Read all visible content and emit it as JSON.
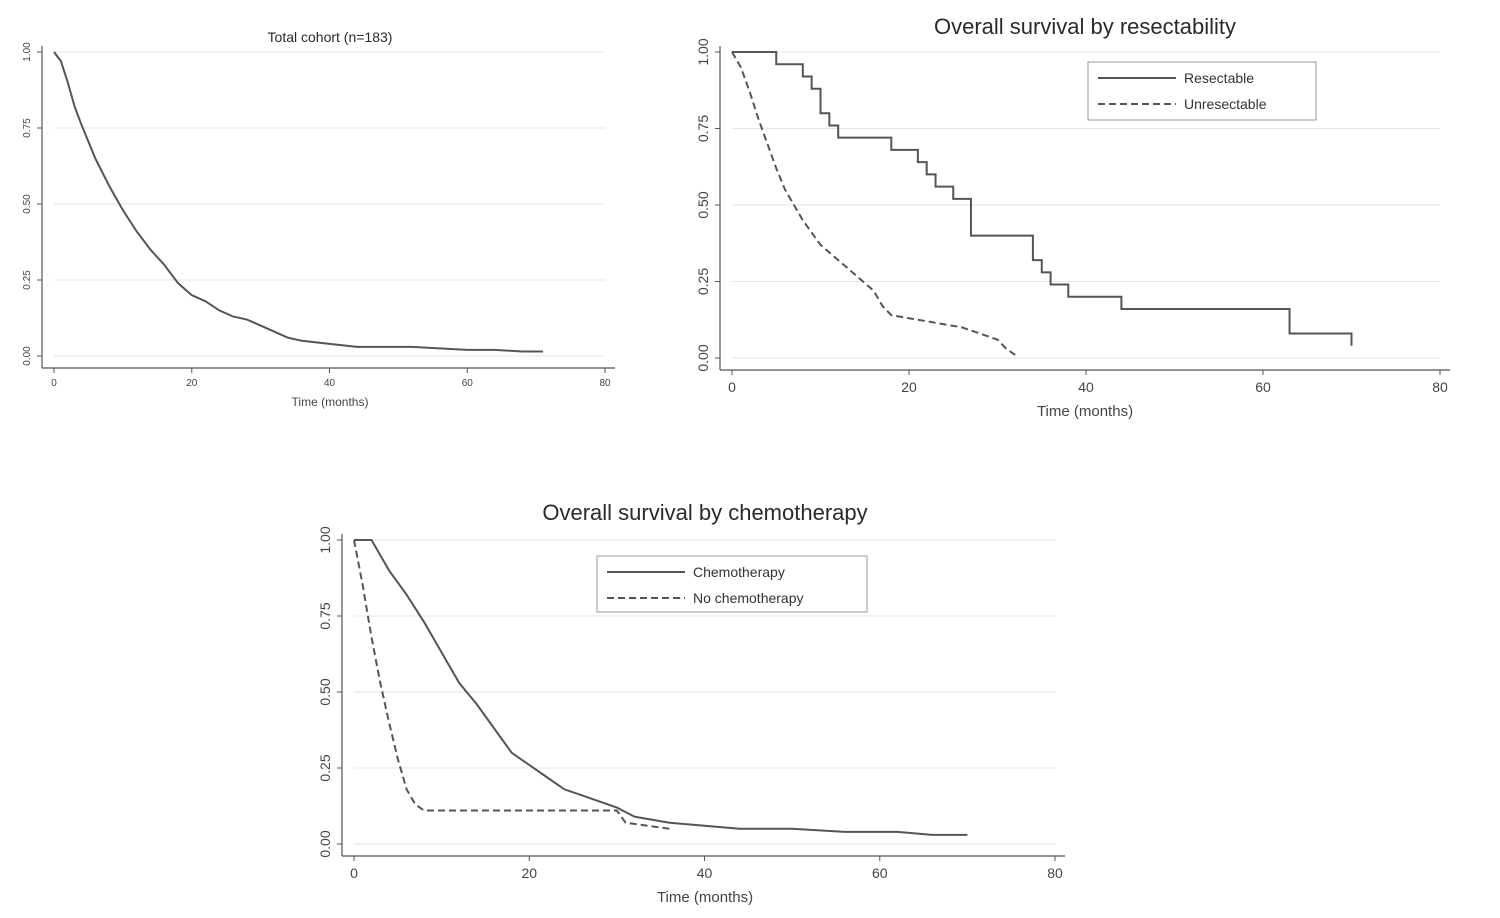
{
  "chart_data": [
    {
      "type": "line",
      "title": "Total cohort (n=183)",
      "xlabel": "Time (months)",
      "ylabel": "",
      "xlim": [
        0,
        80
      ],
      "ylim": [
        0,
        1
      ],
      "xticks": [
        "0",
        "20",
        "40",
        "60",
        "80"
      ],
      "yticks": [
        "0.00",
        "0.25",
        "0.50",
        "0.75",
        "1.00"
      ],
      "grid": true,
      "legend": "none",
      "series": [
        {
          "style": "solid",
          "x": [
            0,
            1,
            2,
            3,
            4,
            6,
            8,
            10,
            12,
            14,
            16,
            18,
            20,
            22,
            24,
            26,
            28,
            30,
            32,
            34,
            36,
            40,
            44,
            48,
            52,
            56,
            60,
            64,
            68,
            71
          ],
          "y": [
            1.0,
            0.97,
            0.9,
            0.82,
            0.76,
            0.65,
            0.56,
            0.48,
            0.41,
            0.35,
            0.3,
            0.24,
            0.2,
            0.18,
            0.15,
            0.13,
            0.12,
            0.1,
            0.08,
            0.06,
            0.05,
            0.04,
            0.03,
            0.03,
            0.03,
            0.025,
            0.02,
            0.02,
            0.015,
            0.015
          ]
        }
      ]
    },
    {
      "type": "line",
      "title": "Overall survival by resectability",
      "xlabel": "Time (months)",
      "ylabel": "",
      "xlim": [
        0,
        80
      ],
      "ylim": [
        0,
        1
      ],
      "xticks": [
        "0",
        "20",
        "40",
        "60",
        "80"
      ],
      "yticks": [
        "0.00",
        "0.25",
        "0.50",
        "0.75",
        "1.00"
      ],
      "grid": true,
      "legend": "top-right",
      "series": [
        {
          "name": "Resectable",
          "style": "solid",
          "step": true,
          "x": [
            0,
            5,
            8,
            9,
            10,
            11,
            12,
            18,
            21,
            22,
            23,
            25,
            27,
            34,
            35,
            36,
            38,
            44,
            62,
            63,
            70,
            70
          ],
          "y": [
            1.0,
            0.96,
            0.92,
            0.88,
            0.8,
            0.76,
            0.72,
            0.68,
            0.64,
            0.6,
            0.56,
            0.52,
            0.4,
            0.32,
            0.28,
            0.24,
            0.2,
            0.16,
            0.16,
            0.08,
            0.08,
            0.04
          ]
        },
        {
          "name": "Unresectable",
          "style": "dashed",
          "x": [
            0,
            1,
            2,
            3,
            4,
            5,
            6,
            8,
            10,
            12,
            14,
            16,
            17,
            18,
            20,
            22,
            24,
            26,
            28,
            30,
            31,
            32
          ],
          "y": [
            1.0,
            0.95,
            0.87,
            0.78,
            0.7,
            0.62,
            0.55,
            0.45,
            0.37,
            0.32,
            0.27,
            0.22,
            0.17,
            0.14,
            0.13,
            0.12,
            0.11,
            0.1,
            0.08,
            0.06,
            0.03,
            0.01
          ]
        }
      ]
    },
    {
      "type": "line",
      "title": "Overall survival by chemotherapy",
      "xlabel": "Time (months)",
      "ylabel": "",
      "xlim": [
        0,
        80
      ],
      "ylim": [
        0,
        1
      ],
      "xticks": [
        "0",
        "20",
        "40",
        "60",
        "80"
      ],
      "yticks": [
        "0.00",
        "0.25",
        "0.50",
        "0.75",
        "1.00"
      ],
      "grid": true,
      "legend": "top-center",
      "series": [
        {
          "name": "Chemotherapy",
          "style": "solid",
          "x": [
            0,
            2,
            3,
            4,
            6,
            8,
            10,
            12,
            14,
            16,
            18,
            20,
            22,
            24,
            26,
            28,
            30,
            32,
            36,
            40,
            44,
            50,
            56,
            62,
            66,
            70
          ],
          "y": [
            1.0,
            1.0,
            0.95,
            0.9,
            0.82,
            0.73,
            0.63,
            0.53,
            0.46,
            0.38,
            0.3,
            0.26,
            0.22,
            0.18,
            0.16,
            0.14,
            0.12,
            0.09,
            0.07,
            0.06,
            0.05,
            0.05,
            0.04,
            0.04,
            0.03,
            0.03
          ]
        },
        {
          "name": "No chemotherapy",
          "style": "dashed",
          "x": [
            0,
            1,
            2,
            3,
            4,
            5,
            6,
            7,
            8,
            10,
            14,
            20,
            25,
            30,
            31,
            36
          ],
          "y": [
            1.0,
            0.85,
            0.68,
            0.53,
            0.4,
            0.28,
            0.18,
            0.13,
            0.11,
            0.11,
            0.11,
            0.11,
            0.11,
            0.11,
            0.07,
            0.05
          ]
        }
      ]
    }
  ]
}
